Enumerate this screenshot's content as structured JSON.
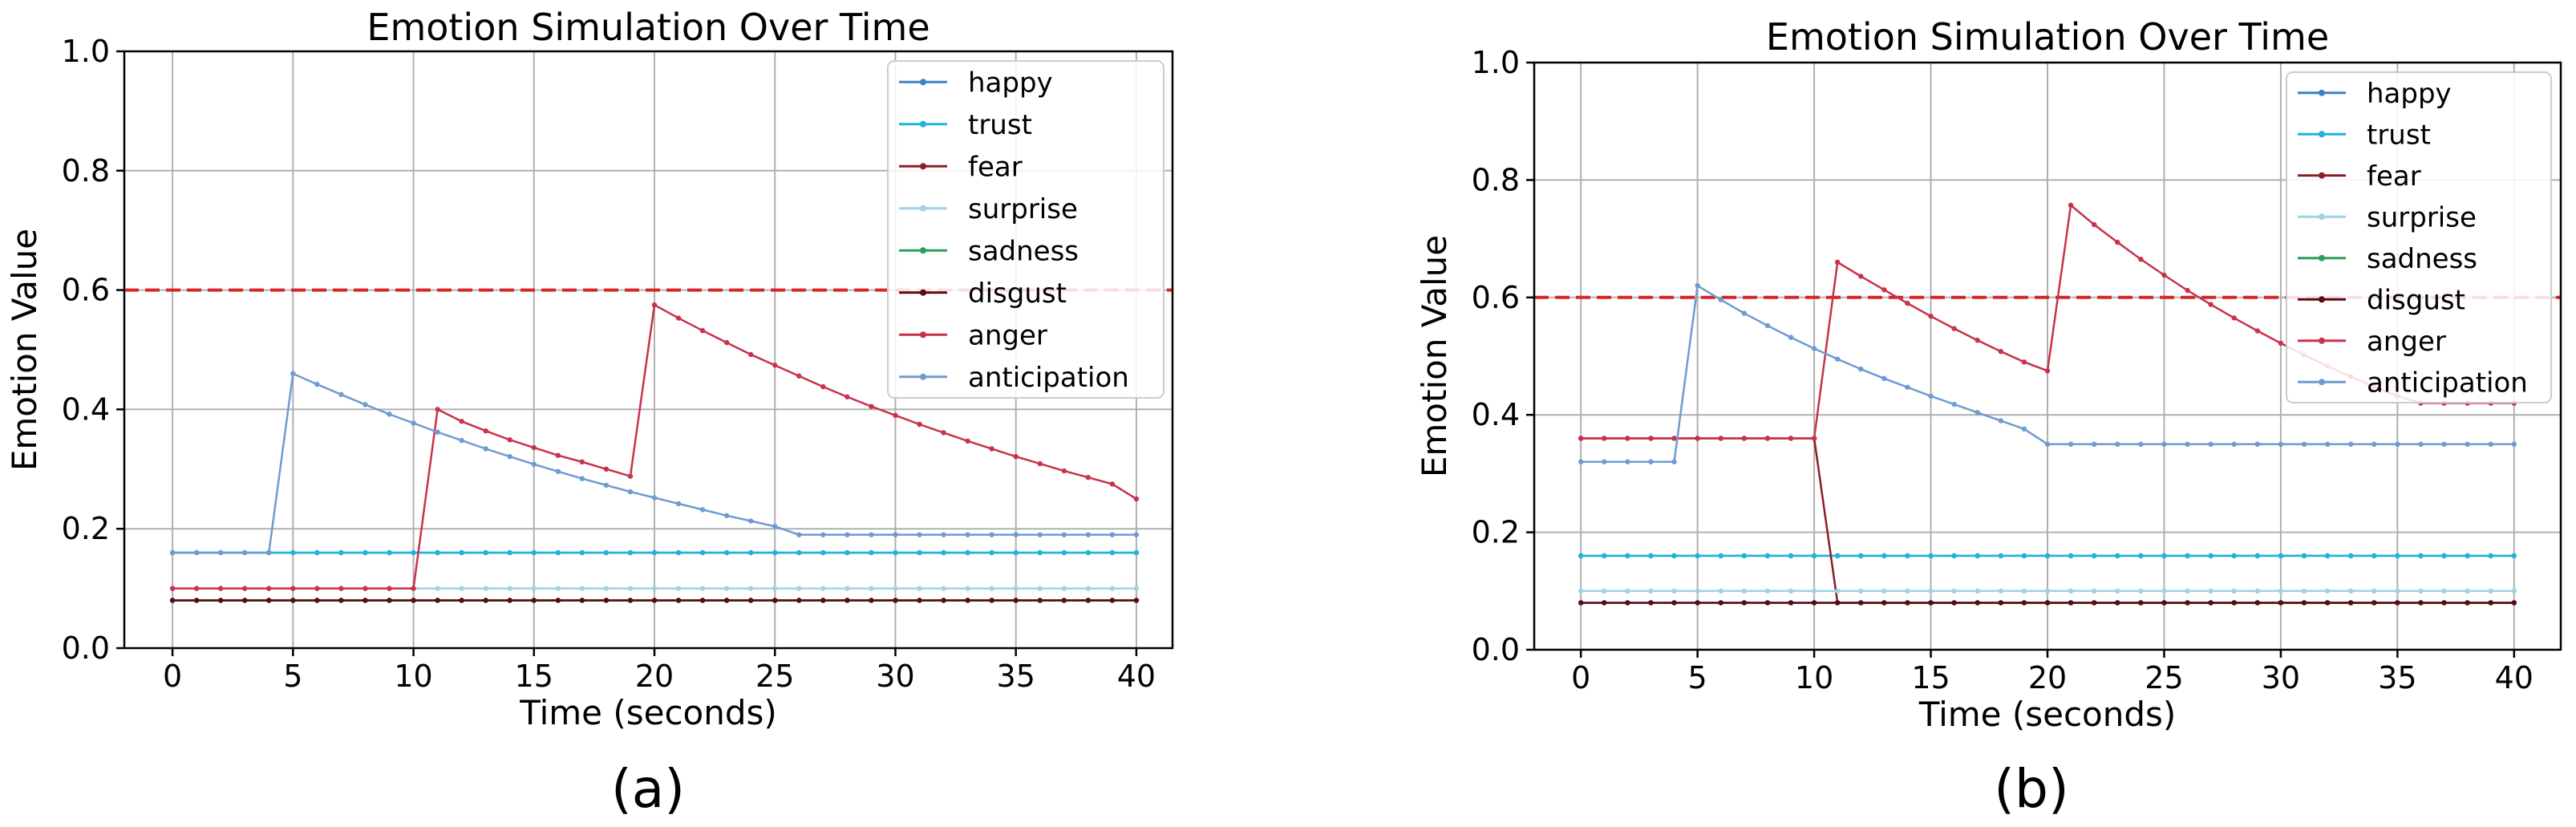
{
  "chart_data": [
    {
      "type": "line",
      "panel_label": "(a)",
      "title": "Emotion Simulation Over Time",
      "xlabel": "Time (seconds)",
      "ylabel": "Emotion Value",
      "xlim": [
        -2,
        41.5
      ],
      "ylim": [
        0,
        1
      ],
      "xticks": [
        0,
        5,
        10,
        15,
        20,
        25,
        30,
        35,
        40
      ],
      "yticks": [
        0.0,
        0.2,
        0.4,
        0.6,
        0.8,
        1.0
      ],
      "xtick_labels": [
        "0",
        "5",
        "10",
        "15",
        "20",
        "25",
        "30",
        "35",
        "40"
      ],
      "ytick_labels": [
        "0.0",
        "0.2",
        "0.4",
        "0.6",
        "0.8",
        "1.0"
      ],
      "grid": true,
      "legend_position": "top-right",
      "threshold": {
        "y": 0.6,
        "color": "#d62728",
        "style": "dashed"
      },
      "x": [
        0,
        1,
        2,
        3,
        4,
        5,
        6,
        7,
        8,
        9,
        10,
        11,
        12,
        13,
        14,
        15,
        16,
        17,
        18,
        19,
        20,
        21,
        22,
        23,
        24,
        25,
        26,
        27,
        28,
        29,
        30,
        31,
        32,
        33,
        34,
        35,
        36,
        37,
        38,
        39,
        40
      ],
      "series": [
        {
          "name": "happy",
          "color": "#3c82c3",
          "values": [
            0.16,
            0.16,
            0.16,
            0.16,
            0.16,
            0.16,
            0.16,
            0.16,
            0.16,
            0.16,
            0.16,
            0.16,
            0.16,
            0.16,
            0.16,
            0.16,
            0.16,
            0.16,
            0.16,
            0.16,
            0.16,
            0.16,
            0.16,
            0.16,
            0.16,
            0.16,
            0.16,
            0.16,
            0.16,
            0.16,
            0.16,
            0.16,
            0.16,
            0.16,
            0.16,
            0.16,
            0.16,
            0.16,
            0.16,
            0.16,
            0.16
          ]
        },
        {
          "name": "trust",
          "color": "#1eb4dc",
          "values": [
            0.16,
            0.16,
            0.16,
            0.16,
            0.16,
            0.16,
            0.16,
            0.16,
            0.16,
            0.16,
            0.16,
            0.16,
            0.16,
            0.16,
            0.16,
            0.16,
            0.16,
            0.16,
            0.16,
            0.16,
            0.16,
            0.16,
            0.16,
            0.16,
            0.16,
            0.16,
            0.16,
            0.16,
            0.16,
            0.16,
            0.16,
            0.16,
            0.16,
            0.16,
            0.16,
            0.16,
            0.16,
            0.16,
            0.16,
            0.16,
            0.16
          ]
        },
        {
          "name": "fear",
          "color": "#8c1c28",
          "values": [
            0.08,
            0.08,
            0.08,
            0.08,
            0.08,
            0.08,
            0.08,
            0.08,
            0.08,
            0.08,
            0.08,
            0.08,
            0.08,
            0.08,
            0.08,
            0.08,
            0.08,
            0.08,
            0.08,
            0.08,
            0.08,
            0.08,
            0.08,
            0.08,
            0.08,
            0.08,
            0.08,
            0.08,
            0.08,
            0.08,
            0.08,
            0.08,
            0.08,
            0.08,
            0.08,
            0.08,
            0.08,
            0.08,
            0.08,
            0.08,
            0.08
          ]
        },
        {
          "name": "surprise",
          "color": "#a0d2e6",
          "values": [
            0.1,
            0.1,
            0.1,
            0.1,
            0.1,
            0.1,
            0.1,
            0.1,
            0.1,
            0.1,
            0.1,
            0.1,
            0.1,
            0.1,
            0.1,
            0.1,
            0.1,
            0.1,
            0.1,
            0.1,
            0.1,
            0.1,
            0.1,
            0.1,
            0.1,
            0.1,
            0.1,
            0.1,
            0.1,
            0.1,
            0.1,
            0.1,
            0.1,
            0.1,
            0.1,
            0.1,
            0.1,
            0.1,
            0.1,
            0.1,
            0.1
          ]
        },
        {
          "name": "sadness",
          "color": "#2ca05a",
          "values": [
            0.08,
            0.08,
            0.08,
            0.08,
            0.08,
            0.08,
            0.08,
            0.08,
            0.08,
            0.08,
            0.08,
            0.08,
            0.08,
            0.08,
            0.08,
            0.08,
            0.08,
            0.08,
            0.08,
            0.08,
            0.08,
            0.08,
            0.08,
            0.08,
            0.08,
            0.08,
            0.08,
            0.08,
            0.08,
            0.08,
            0.08,
            0.08,
            0.08,
            0.08,
            0.08,
            0.08,
            0.08,
            0.08,
            0.08,
            0.08,
            0.08
          ]
        },
        {
          "name": "disgust",
          "color": "#5a0a14",
          "values": [
            0.08,
            0.08,
            0.08,
            0.08,
            0.08,
            0.08,
            0.08,
            0.08,
            0.08,
            0.08,
            0.08,
            0.08,
            0.08,
            0.08,
            0.08,
            0.08,
            0.08,
            0.08,
            0.08,
            0.08,
            0.08,
            0.08,
            0.08,
            0.08,
            0.08,
            0.08,
            0.08,
            0.08,
            0.08,
            0.08,
            0.08,
            0.08,
            0.08,
            0.08,
            0.08,
            0.08,
            0.08,
            0.08,
            0.08,
            0.08,
            0.08
          ]
        },
        {
          "name": "anger",
          "color": "#c8324b",
          "values": [
            0.1,
            0.1,
            0.1,
            0.1,
            0.1,
            0.1,
            0.1,
            0.1,
            0.1,
            0.1,
            0.1,
            0.4,
            0.38,
            0.364,
            0.349,
            0.336,
            0.323,
            0.312,
            0.3,
            0.288,
            0.575,
            0.553,
            0.532,
            0.512,
            0.492,
            0.474,
            0.456,
            0.438,
            0.421,
            0.405,
            0.39,
            0.375,
            0.361,
            0.347,
            0.334,
            0.321,
            0.309,
            0.297,
            0.286,
            0.275,
            0.25
          ]
        },
        {
          "name": "anticipation",
          "color": "#6e9bd2",
          "values": [
            0.16,
            0.16,
            0.16,
            0.16,
            0.16,
            0.46,
            0.442,
            0.425,
            0.408,
            0.392,
            0.377,
            0.362,
            0.348,
            0.334,
            0.321,
            0.308,
            0.296,
            0.284,
            0.273,
            0.262,
            0.252,
            0.242,
            0.232,
            0.222,
            0.213,
            0.204,
            0.19,
            0.19,
            0.19,
            0.19,
            0.19,
            0.19,
            0.19,
            0.19,
            0.19,
            0.19,
            0.19,
            0.19,
            0.19,
            0.19,
            0.19
          ]
        }
      ]
    },
    {
      "type": "line",
      "panel_label": "(b)",
      "title": "Emotion Simulation Over Time",
      "xlabel": "Time (seconds)",
      "ylabel": "Emotion Value",
      "xlim": [
        -2,
        42
      ],
      "ylim": [
        0,
        1
      ],
      "xticks": [
        0,
        5,
        10,
        15,
        20,
        25,
        30,
        35,
        40
      ],
      "yticks": [
        0.0,
        0.2,
        0.4,
        0.6,
        0.8,
        1.0
      ],
      "xtick_labels": [
        "0",
        "5",
        "10",
        "15",
        "20",
        "25",
        "30",
        "35",
        "40"
      ],
      "ytick_labels": [
        "0.0",
        "0.2",
        "0.4",
        "0.6",
        "0.8",
        "1.0"
      ],
      "grid": true,
      "legend_position": "top-right",
      "threshold": {
        "y": 0.6,
        "color": "#d62728",
        "style": "dashed"
      },
      "x": [
        0,
        1,
        2,
        3,
        4,
        5,
        6,
        7,
        8,
        9,
        10,
        11,
        12,
        13,
        14,
        15,
        16,
        17,
        18,
        19,
        20,
        21,
        22,
        23,
        24,
        25,
        26,
        27,
        28,
        29,
        30,
        31,
        32,
        33,
        34,
        35,
        36,
        37,
        38,
        39,
        40
      ],
      "series": [
        {
          "name": "happy",
          "color": "#3c82c3",
          "values": [
            0.16,
            0.16,
            0.16,
            0.16,
            0.16,
            0.16,
            0.16,
            0.16,
            0.16,
            0.16,
            0.16,
            0.16,
            0.16,
            0.16,
            0.16,
            0.16,
            0.16,
            0.16,
            0.16,
            0.16,
            0.16,
            0.16,
            0.16,
            0.16,
            0.16,
            0.16,
            0.16,
            0.16,
            0.16,
            0.16,
            0.16,
            0.16,
            0.16,
            0.16,
            0.16,
            0.16,
            0.16,
            0.16,
            0.16,
            0.16,
            0.16
          ]
        },
        {
          "name": "trust",
          "color": "#1eb4dc",
          "values": [
            0.16,
            0.16,
            0.16,
            0.16,
            0.16,
            0.16,
            0.16,
            0.16,
            0.16,
            0.16,
            0.16,
            0.16,
            0.16,
            0.16,
            0.16,
            0.16,
            0.16,
            0.16,
            0.16,
            0.16,
            0.16,
            0.16,
            0.16,
            0.16,
            0.16,
            0.16,
            0.16,
            0.16,
            0.16,
            0.16,
            0.16,
            0.16,
            0.16,
            0.16,
            0.16,
            0.16,
            0.16,
            0.16,
            0.16,
            0.16,
            0.16
          ]
        },
        {
          "name": "fear",
          "color": "#8c1c28",
          "values": [
            0.36,
            0.36,
            0.36,
            0.36,
            0.36,
            0.36,
            0.36,
            0.36,
            0.36,
            0.36,
            0.36,
            0.08,
            0.08,
            0.08,
            0.08,
            0.08,
            0.08,
            0.08,
            0.08,
            0.08,
            0.08,
            0.08,
            0.08,
            0.08,
            0.08,
            0.08,
            0.08,
            0.08,
            0.08,
            0.08,
            0.08,
            0.08,
            0.08,
            0.08,
            0.08,
            0.08,
            0.08,
            0.08,
            0.08,
            0.08,
            0.08
          ]
        },
        {
          "name": "surprise",
          "color": "#a0d2e6",
          "values": [
            0.1,
            0.1,
            0.1,
            0.1,
            0.1,
            0.1,
            0.1,
            0.1,
            0.1,
            0.1,
            0.1,
            0.1,
            0.1,
            0.1,
            0.1,
            0.1,
            0.1,
            0.1,
            0.1,
            0.1,
            0.1,
            0.1,
            0.1,
            0.1,
            0.1,
            0.1,
            0.1,
            0.1,
            0.1,
            0.1,
            0.1,
            0.1,
            0.1,
            0.1,
            0.1,
            0.1,
            0.1,
            0.1,
            0.1,
            0.1,
            0.1
          ]
        },
        {
          "name": "sadness",
          "color": "#2ca05a",
          "values": [
            0.08,
            0.08,
            0.08,
            0.08,
            0.08,
            0.08,
            0.08,
            0.08,
            0.08,
            0.08,
            0.08,
            0.08,
            0.08,
            0.08,
            0.08,
            0.08,
            0.08,
            0.08,
            0.08,
            0.08,
            0.08,
            0.08,
            0.08,
            0.08,
            0.08,
            0.08,
            0.08,
            0.08,
            0.08,
            0.08,
            0.08,
            0.08,
            0.08,
            0.08,
            0.08,
            0.08,
            0.08,
            0.08,
            0.08,
            0.08,
            0.08
          ]
        },
        {
          "name": "disgust",
          "color": "#5a0a14",
          "values": [
            0.08,
            0.08,
            0.08,
            0.08,
            0.08,
            0.08,
            0.08,
            0.08,
            0.08,
            0.08,
            0.08,
            0.08,
            0.08,
            0.08,
            0.08,
            0.08,
            0.08,
            0.08,
            0.08,
            0.08,
            0.08,
            0.08,
            0.08,
            0.08,
            0.08,
            0.08,
            0.08,
            0.08,
            0.08,
            0.08,
            0.08,
            0.08,
            0.08,
            0.08,
            0.08,
            0.08,
            0.08,
            0.08,
            0.08,
            0.08,
            0.08
          ]
        },
        {
          "name": "anger",
          "color": "#c8324b",
          "values": [
            0.36,
            0.36,
            0.36,
            0.36,
            0.36,
            0.36,
            0.36,
            0.36,
            0.36,
            0.36,
            0.36,
            0.66,
            0.636,
            0.613,
            0.59,
            0.568,
            0.547,
            0.527,
            0.508,
            0.49,
            0.475,
            0.757,
            0.724,
            0.694,
            0.665,
            0.638,
            0.612,
            0.588,
            0.565,
            0.543,
            0.522,
            0.502,
            0.483,
            0.465,
            0.448,
            0.432,
            0.42,
            0.42,
            0.42,
            0.42,
            0.42
          ]
        },
        {
          "name": "anticipation",
          "color": "#6e9bd2",
          "values": [
            0.32,
            0.32,
            0.32,
            0.32,
            0.32,
            0.62,
            0.596,
            0.573,
            0.552,
            0.532,
            0.513,
            0.495,
            0.478,
            0.462,
            0.447,
            0.432,
            0.418,
            0.404,
            0.39,
            0.376,
            0.35,
            0.35,
            0.35,
            0.35,
            0.35,
            0.35,
            0.35,
            0.35,
            0.35,
            0.35,
            0.35,
            0.35,
            0.35,
            0.35,
            0.35,
            0.35,
            0.35,
            0.35,
            0.35,
            0.35,
            0.35
          ]
        }
      ]
    }
  ]
}
